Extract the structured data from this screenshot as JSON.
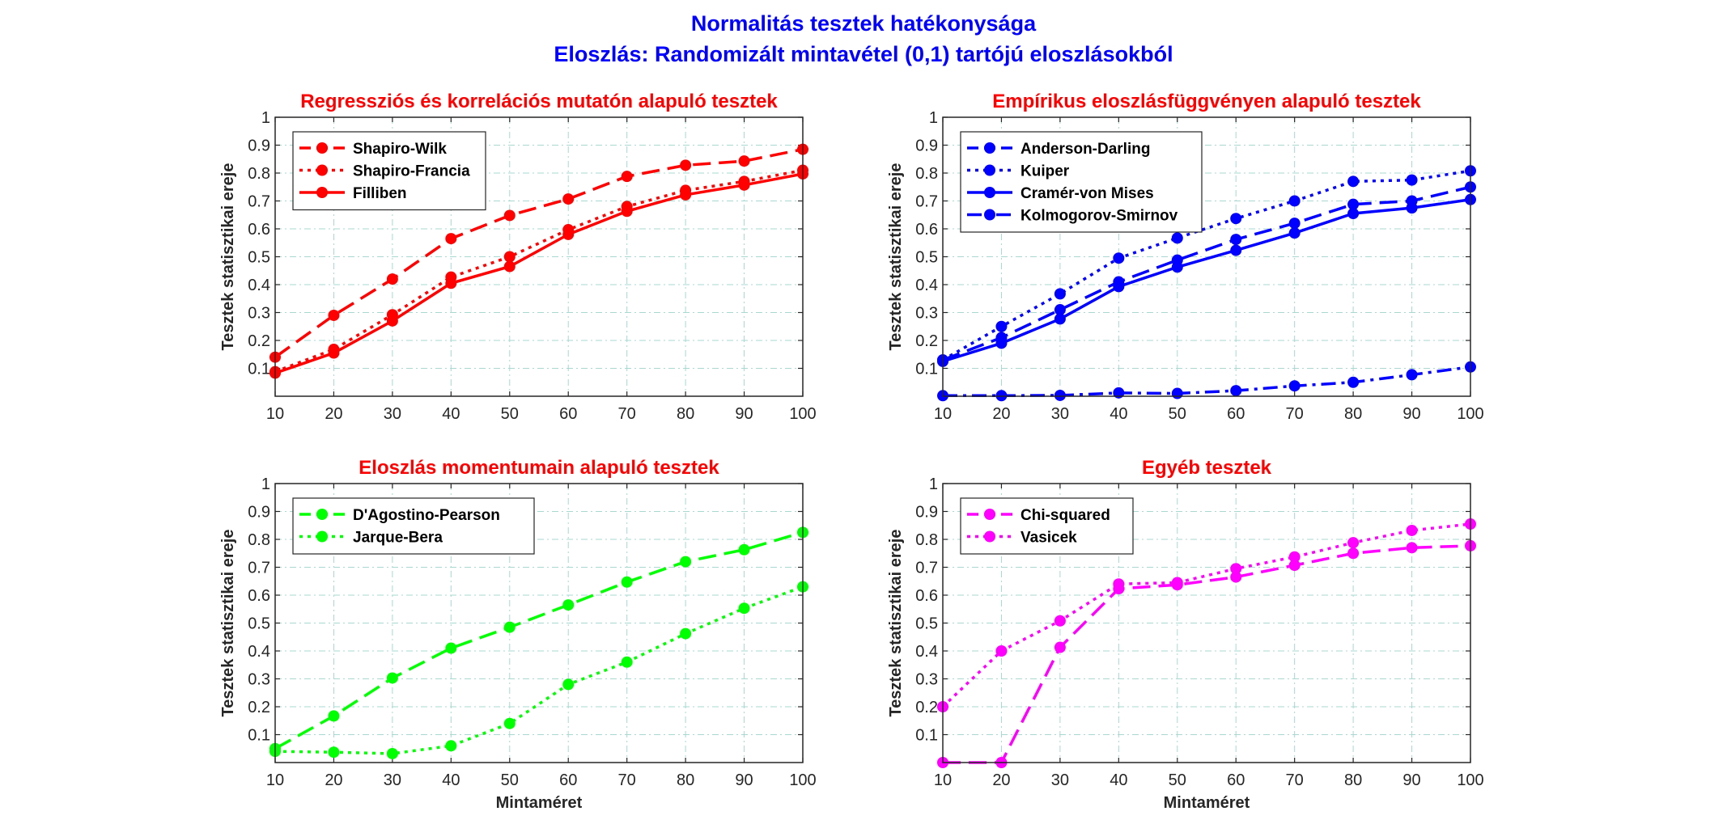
{
  "figure": {
    "title_line1": "Normalitás tesztek hatékonysága",
    "title_line2": "Eloszlás: Randomizált mintavétel (0,1) tartójú eloszlásokból"
  },
  "chart_data": [
    {
      "type": "line",
      "title": "Regressziós és korrelációs mutatón alapuló tesztek",
      "title_color": "#ff0000",
      "xlabel": "",
      "ylabel": "Tesztek statisztikai ereje",
      "x": [
        10,
        20,
        30,
        40,
        50,
        60,
        70,
        80,
        90,
        100
      ],
      "xlim": [
        10,
        100
      ],
      "ylim": [
        0,
        1
      ],
      "xticks": [
        "10",
        "20",
        "30",
        "40",
        "50",
        "60",
        "70",
        "80",
        "90",
        "100"
      ],
      "yticks": [
        "0.1",
        "0.2",
        "0.3",
        "0.4",
        "0.5",
        "0.6",
        "0.7",
        "0.8",
        "0.9",
        "1"
      ],
      "grid": true,
      "legend_position": "top-left",
      "series": [
        {
          "name": "Shapiro-Wilk",
          "color": "#ff0000",
          "style": "dashed",
          "values": [
            0.14,
            0.29,
            0.42,
            0.565,
            0.648,
            0.707,
            0.788,
            0.828,
            0.843,
            0.885
          ]
        },
        {
          "name": "Shapiro-Francia",
          "color": "#ff0000",
          "style": "dotted",
          "values": [
            0.088,
            0.168,
            0.292,
            0.427,
            0.5,
            0.597,
            0.68,
            0.738,
            0.77,
            0.81
          ]
        },
        {
          "name": "Filliben",
          "color": "#ff0000",
          "style": "solid",
          "values": [
            0.083,
            0.155,
            0.27,
            0.405,
            0.465,
            0.58,
            0.663,
            0.722,
            0.757,
            0.797
          ]
        }
      ]
    },
    {
      "type": "line",
      "title": "Empírikus eloszlásfüggvényen alapuló tesztek",
      "title_color": "#ff0000",
      "xlabel": "",
      "ylabel": "Tesztek statisztikai ereje",
      "x": [
        10,
        20,
        30,
        40,
        50,
        60,
        70,
        80,
        90,
        100
      ],
      "xlim": [
        10,
        100
      ],
      "ylim": [
        0,
        1
      ],
      "xticks": [
        "10",
        "20",
        "30",
        "40",
        "50",
        "60",
        "70",
        "80",
        "90",
        "100"
      ],
      "yticks": [
        "0.1",
        "0.2",
        "0.3",
        "0.4",
        "0.5",
        "0.6",
        "0.7",
        "0.8",
        "0.9",
        "1"
      ],
      "grid": true,
      "legend_position": "top-left",
      "series": [
        {
          "name": "Anderson-Darling",
          "color": "#0000ff",
          "style": "dashed",
          "values": [
            0.13,
            0.21,
            0.31,
            0.41,
            0.488,
            0.562,
            0.62,
            0.688,
            0.7,
            0.75
          ]
        },
        {
          "name": "Kuiper",
          "color": "#0000ff",
          "style": "dotted",
          "values": [
            0.13,
            0.25,
            0.367,
            0.495,
            0.567,
            0.637,
            0.7,
            0.77,
            0.775,
            0.808
          ]
        },
        {
          "name": "Cramér-von Mises",
          "color": "#0000ff",
          "style": "solid",
          "values": [
            0.125,
            0.19,
            0.277,
            0.393,
            0.463,
            0.523,
            0.585,
            0.655,
            0.675,
            0.705
          ]
        },
        {
          "name": "Kolmogorov-Smirnov",
          "color": "#0000ff",
          "style": "dashdot",
          "values": [
            0.002,
            0.002,
            0.003,
            0.012,
            0.01,
            0.02,
            0.037,
            0.05,
            0.077,
            0.105
          ]
        }
      ]
    },
    {
      "type": "line",
      "title": "Eloszlás momentumain alapuló tesztek",
      "title_color": "#ff0000",
      "xlabel": "Mintaméret",
      "ylabel": "Tesztek statisztikai ereje",
      "x": [
        10,
        20,
        30,
        40,
        50,
        60,
        70,
        80,
        90,
        100
      ],
      "xlim": [
        10,
        100
      ],
      "ylim": [
        0,
        1
      ],
      "xticks": [
        "10",
        "20",
        "30",
        "40",
        "50",
        "60",
        "70",
        "80",
        "90",
        "100"
      ],
      "yticks": [
        "0.1",
        "0.2",
        "0.3",
        "0.4",
        "0.5",
        "0.6",
        "0.7",
        "0.8",
        "0.9",
        "1"
      ],
      "grid": true,
      "legend_position": "top-left",
      "series": [
        {
          "name": "D'Agostino-Pearson",
          "color": "#00ff00",
          "style": "dashed",
          "values": [
            0.05,
            0.167,
            0.303,
            0.41,
            0.485,
            0.565,
            0.647,
            0.72,
            0.763,
            0.825
          ]
        },
        {
          "name": "Jarque-Bera",
          "color": "#00ff00",
          "style": "dotted",
          "values": [
            0.04,
            0.037,
            0.032,
            0.06,
            0.14,
            0.28,
            0.36,
            0.462,
            0.553,
            0.63
          ]
        }
      ]
    },
    {
      "type": "line",
      "title": "Egyéb tesztek",
      "title_color": "#ff0000",
      "xlabel": "Mintaméret",
      "ylabel": "Tesztek statisztikai ereje",
      "x": [
        10,
        20,
        30,
        40,
        50,
        60,
        70,
        80,
        90,
        100
      ],
      "xlim": [
        10,
        100
      ],
      "ylim": [
        0,
        1
      ],
      "xticks": [
        "10",
        "20",
        "30",
        "40",
        "50",
        "60",
        "70",
        "80",
        "90",
        "100"
      ],
      "yticks": [
        "0.1",
        "0.2",
        "0.3",
        "0.4",
        "0.5",
        "0.6",
        "0.7",
        "0.8",
        "0.9",
        "1"
      ],
      "grid": true,
      "legend_position": "top-left",
      "series": [
        {
          "name": "Chi-squared",
          "color": "#ff00ff",
          "style": "dashed",
          "values": [
            0.0,
            0.0,
            0.413,
            0.623,
            0.637,
            0.665,
            0.707,
            0.75,
            0.77,
            0.777
          ]
        },
        {
          "name": "Vasicek",
          "color": "#ff00ff",
          "style": "dotted",
          "values": [
            0.2,
            0.4,
            0.508,
            0.64,
            0.645,
            0.695,
            0.737,
            0.788,
            0.832,
            0.855
          ]
        }
      ]
    }
  ]
}
